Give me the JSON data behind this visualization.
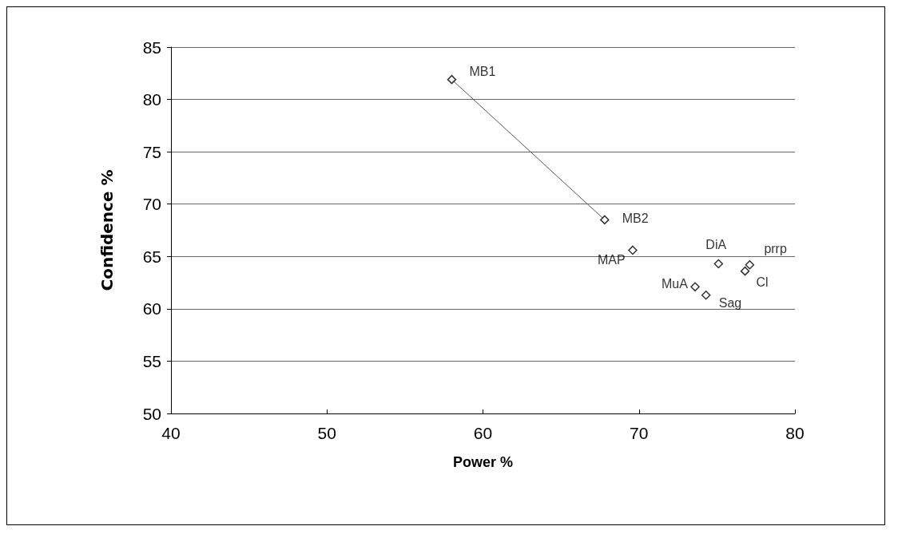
{
  "chart_data": {
    "type": "scatter",
    "xlabel": "Power %",
    "ylabel": "Confidence %",
    "xlim": [
      40,
      80
    ],
    "xticks": [
      40,
      50,
      60,
      70,
      80
    ],
    "ylim": [
      50,
      85
    ],
    "yticks": [
      50,
      55,
      60,
      65,
      70,
      75,
      80,
      85
    ],
    "grid": "y",
    "marker": "diamond",
    "series": [
      {
        "color": "#000000",
        "x": [
          58.0,
          67.8,
          69.6,
          75.1,
          77.1,
          76.8,
          73.6,
          74.3
        ],
        "values": [
          81.9,
          68.5,
          65.6,
          64.3,
          64.2,
          63.6,
          62.1,
          61.3
        ]
      },
      {
        "type": "line",
        "color": "#555555",
        "marker": "none",
        "line_style": "solid",
        "x": [
          58.0,
          67.8
        ],
        "values": [
          81.9,
          68.5
        ]
      }
    ],
    "annotations": [
      {
        "text": "MB1",
        "x": 58.0,
        "y": 81.9
      },
      {
        "text": "MB2",
        "x": 67.8,
        "y": 68.5
      },
      {
        "text": "MAP",
        "x": 69.6,
        "y": 65.6
      },
      {
        "text": "DiA",
        "x": 75.1,
        "y": 64.3
      },
      {
        "text": "prrp",
        "x": 77.1,
        "y": 64.2
      },
      {
        "text": "Cl",
        "x": 76.8,
        "y": 63.6
      },
      {
        "text": "MuA",
        "x": 73.6,
        "y": 62.1
      },
      {
        "text": "Sag",
        "x": 74.3,
        "y": 61.3
      }
    ]
  }
}
